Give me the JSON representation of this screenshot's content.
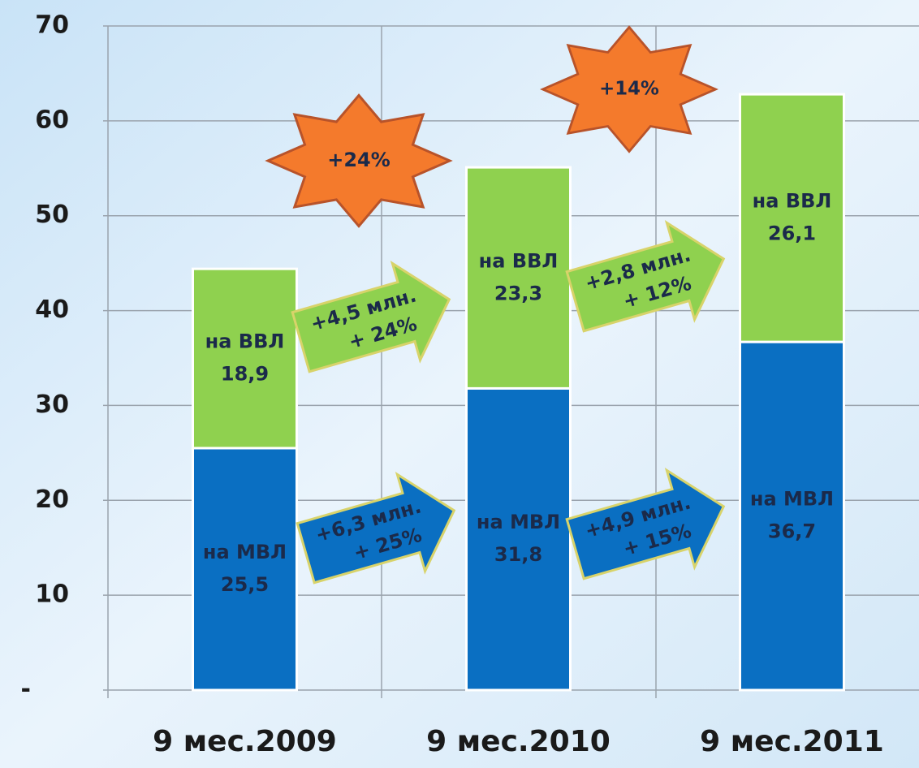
{
  "chart_data": {
    "type": "stacked_bar",
    "categories": [
      "9 мес.2009",
      "9 мес.2010",
      "9 мес.2011"
    ],
    "series": [
      {
        "name": "на МВЛ",
        "color": "#0a6fc2",
        "values": [
          25.5,
          31.8,
          36.7
        ],
        "value_labels": [
          "25,5",
          "31,8",
          "36,7"
        ]
      },
      {
        "name": "на ВВЛ",
        "color": "#8fd14f",
        "values": [
          18.9,
          23.3,
          26.1
        ],
        "value_labels": [
          "18,9",
          "23,3",
          "26,1"
        ]
      }
    ],
    "ylim": [
      0,
      70
    ],
    "yticks": [
      {
        "value": 0,
        "label": "-"
      },
      10,
      20,
      30,
      40,
      50,
      60,
      70
    ],
    "grid": true,
    "arrows": [
      {
        "lines": [
          "+6,3 млн.",
          "+ 25%"
        ]
      },
      {
        "lines": [
          "+4,5 млн.",
          "+ 24%"
        ]
      },
      {
        "lines": [
          "+4,9 млн.",
          "+ 15%"
        ]
      },
      {
        "lines": [
          "+2,8 млн.",
          "+ 12%"
        ]
      }
    ],
    "total_growth": [
      "+24%",
      "+14%"
    ]
  }
}
